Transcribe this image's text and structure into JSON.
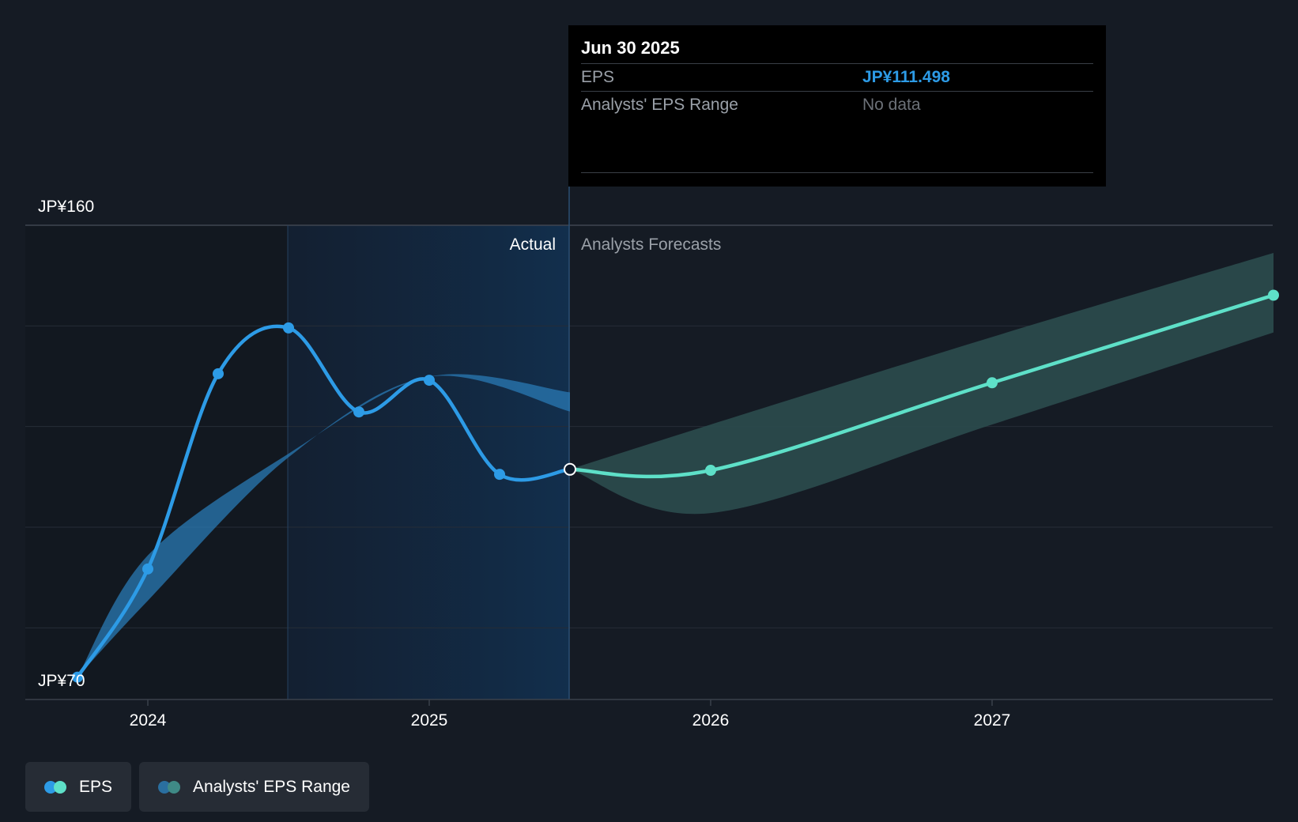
{
  "chart_data": {
    "type": "line",
    "y_top_label": "JP¥160",
    "y_bottom_label": "JP¥70",
    "ylim": [
      70,
      160
    ],
    "x_ticks": [
      "2024",
      "2025",
      "2026",
      "2027"
    ],
    "divider_labels": {
      "actual": "Actual",
      "forecast": "Analysts Forecasts"
    },
    "series": [
      {
        "name": "EPS",
        "points": [
          {
            "x": 2023.75,
            "y": 70.2
          },
          {
            "x": 2024.0,
            "y": 91.7
          },
          {
            "x": 2024.25,
            "y": 130.5
          },
          {
            "x": 2024.5,
            "y": 139.6
          },
          {
            "x": 2024.75,
            "y": 122.9
          },
          {
            "x": 2025.0,
            "y": 129.2
          },
          {
            "x": 2025.25,
            "y": 110.5
          },
          {
            "x": 2025.5,
            "y": 111.498
          }
        ]
      },
      {
        "name": "EPS Forecast",
        "points": [
          {
            "x": 2025.5,
            "y": 111.498
          },
          {
            "x": 2026.0,
            "y": 111.3
          },
          {
            "x": 2027.0,
            "y": 128.7
          },
          {
            "x": 2028.0,
            "y": 146.1
          }
        ]
      }
    ],
    "analyst_range_historical": [
      {
        "x": 2023.75,
        "low": 70.2,
        "high": 70.2
      },
      {
        "x": 2024.0,
        "low": 85.4,
        "high": 94.4
      },
      {
        "x": 2024.5,
        "low": 113.9,
        "high": 114.6
      },
      {
        "x": 2025.0,
        "low": 129.9,
        "high": 129.9
      },
      {
        "x": 2025.5,
        "low": 123.0,
        "high": 126.8
      }
    ],
    "analyst_range_forecast": [
      {
        "x": 2025.5,
        "low": 111.5,
        "high": 111.5
      },
      {
        "x": 2026.0,
        "low": 102.8,
        "high": 120.4
      },
      {
        "x": 2027.0,
        "low": 120.4,
        "high": 137.8
      },
      {
        "x": 2028.0,
        "low": 138.7,
        "high": 154.5
      }
    ],
    "colors": {
      "eps": "#2d9be6",
      "forecast": "#5ee0c8",
      "range_hist": "#2a79b4",
      "range_forecast": "#2a4a4c"
    }
  },
  "tooltip": {
    "date": "Jun 30 2025",
    "eps_label": "EPS",
    "eps_value": "JP¥111.498",
    "range_label": "Analysts' EPS Range",
    "range_value": "No data"
  },
  "legend": {
    "items": [
      {
        "label": "EPS",
        "colors": [
          "#2d9be6",
          "#5ee0c8"
        ]
      },
      {
        "label": "Analysts' EPS Range",
        "colors": [
          "#2a6fa0",
          "#3f8a86"
        ]
      }
    ]
  }
}
